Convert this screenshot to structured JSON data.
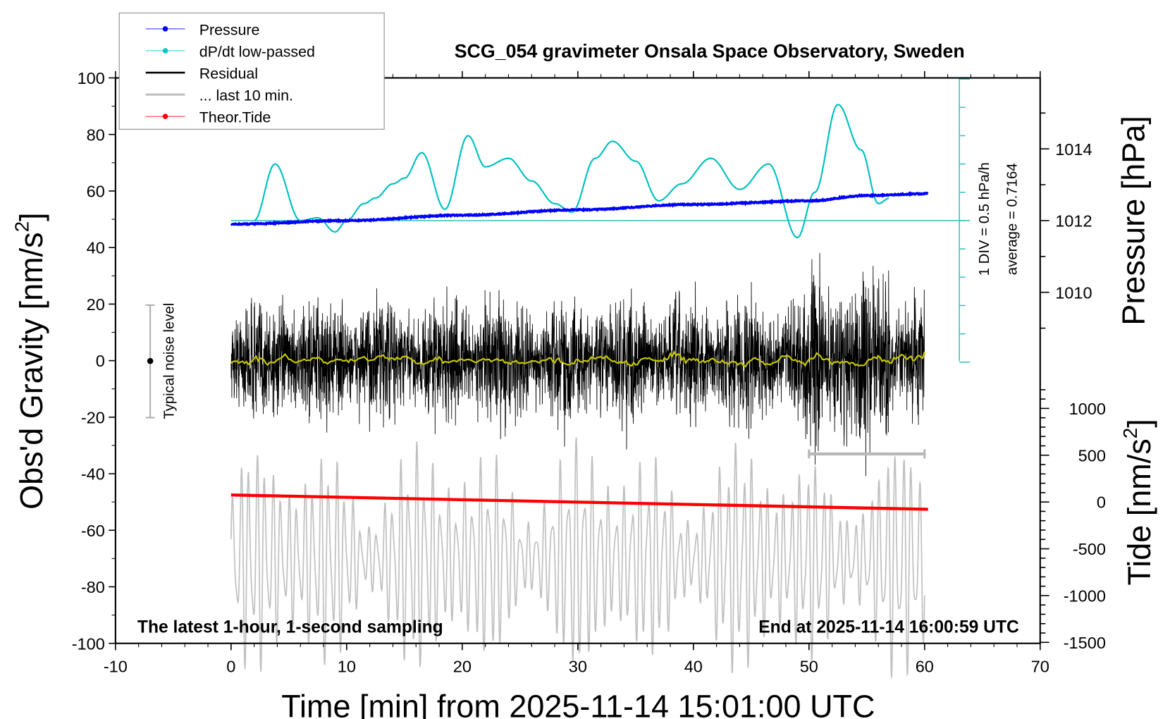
{
  "chart_data": {
    "type": "line",
    "title": "SCG_054 gravimeter Onsala Space Observatory, Sweden",
    "xlabel": "Time [min] from 2025-11-14 15:01:00 UTC",
    "ylabel_left": "Obs'd Gravity [nm/s",
    "ylabel_left_sup": "2",
    "ylabel_left_end": "]",
    "ylabel_right_pressure": "Pressure [hPa]",
    "ylabel_right_tide": "Tide [nm/s",
    "ylabel_right_tide_sup": "2",
    "ylabel_right_tide_end": "]",
    "xlim": [
      -10,
      70
    ],
    "ylim": [
      -100,
      100
    ],
    "x_ticks": [
      "-10",
      "0",
      "10",
      "20",
      "30",
      "40",
      "50",
      "60",
      "70"
    ],
    "y_ticks": [
      "100",
      "80",
      "60",
      "40",
      "20",
      "0",
      "-20",
      "-40",
      "-60",
      "-80",
      "-100"
    ],
    "pressure_ticks": [
      "1014",
      "1012",
      "1010"
    ],
    "tide_ticks": [
      "1000",
      "500",
      "0",
      "-500",
      "-1000",
      "-1500"
    ],
    "annotation_left": "The latest 1-hour, 1-second sampling",
    "annotation_right": "End at 2025-11-14 16:00:59 UTC",
    "dpdt_scale": "1 DIV = 0.5 hPa/h",
    "dpdt_average": "average = 0.7164",
    "noise_label": "Typical noise level",
    "noise_level_range": [
      -20,
      20
    ],
    "legend": [
      {
        "label": "Pressure",
        "color": "#0000ff"
      },
      {
        "label": "dP/dt low-passed",
        "color": "#00c8c8"
      },
      {
        "label": "Residual",
        "color": "#000000"
      },
      {
        "label": "... last 10 min.",
        "color": "#c0c0c0"
      },
      {
        "label": "Theor.Tide",
        "color": "#ff0000"
      }
    ],
    "series": [
      {
        "name": "Pressure",
        "unit": "hPa",
        "x": [
          0,
          10,
          20,
          30,
          40,
          50,
          55,
          60.3
        ],
        "y": [
          1011.9,
          1012.0,
          1012.15,
          1012.3,
          1012.45,
          1012.55,
          1012.7,
          1012.75
        ]
      },
      {
        "name": "dP/dt low-passed",
        "unit": "DIV from average",
        "x": [
          2,
          3.8,
          6,
          7.5,
          9,
          10,
          11.5,
          12.5,
          14,
          15,
          16.5,
          18.5,
          20.5,
          22,
          24,
          26,
          28,
          29.5,
          31.5,
          33,
          35,
          37,
          39,
          41.5,
          44,
          46.5,
          49,
          50.5,
          52.5,
          54.5,
          56,
          57
        ],
        "y": [
          0,
          2.0,
          0,
          0.1,
          -0.4,
          0,
          0.6,
          0.8,
          1.3,
          1.5,
          2.4,
          0.4,
          3.0,
          1.9,
          2.2,
          1.4,
          0.6,
          0.3,
          2.2,
          2.8,
          2.1,
          0.7,
          1.3,
          2.2,
          1.1,
          2.0,
          -0.6,
          1.0,
          4.1,
          2.5,
          0.6,
          0.8
        ]
      },
      {
        "name": "Residual",
        "unit": "nm/s2",
        "x_range": [
          0,
          60
        ],
        "typical_amplitude": 20,
        "max_abs": 45
      },
      {
        "name": "Residual low-passed",
        "unit": "nm/s2",
        "x_range": [
          0,
          60
        ],
        "value": 0
      },
      {
        "name": "... last 10 min.",
        "unit": "nm/s2",
        "x_range": [
          0,
          60
        ],
        "center": -70,
        "amplitude": 35,
        "time_scale_bar_min": [
          50,
          60
        ]
      },
      {
        "name": "Theor.Tide",
        "unit": "nm/s2",
        "x": [
          0,
          60.3
        ],
        "y": [
          75,
          -78
        ]
      }
    ]
  }
}
